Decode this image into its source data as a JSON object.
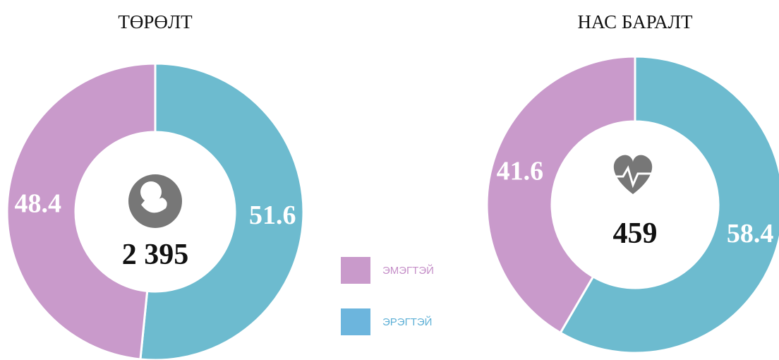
{
  "chart_data": [
    {
      "type": "pie",
      "title": "ТӨРӨЛТ",
      "center_label": "2 395",
      "categories": [
        "ЭМЭГТЭЙ",
        "ЭРЭГТЭЙ"
      ],
      "values": [
        48.4,
        51.6
      ],
      "colors": [
        "#c99acb",
        "#6dbbcf"
      ]
    },
    {
      "type": "pie",
      "title": "НАС БАРАЛТ",
      "center_label": "459",
      "categories": [
        "ЭМЭГТЭЙ",
        "ЭРЭГТЭЙ"
      ],
      "values": [
        41.6,
        58.4
      ],
      "colors": [
        "#c99acb",
        "#6dbbcf"
      ]
    }
  ]
}
